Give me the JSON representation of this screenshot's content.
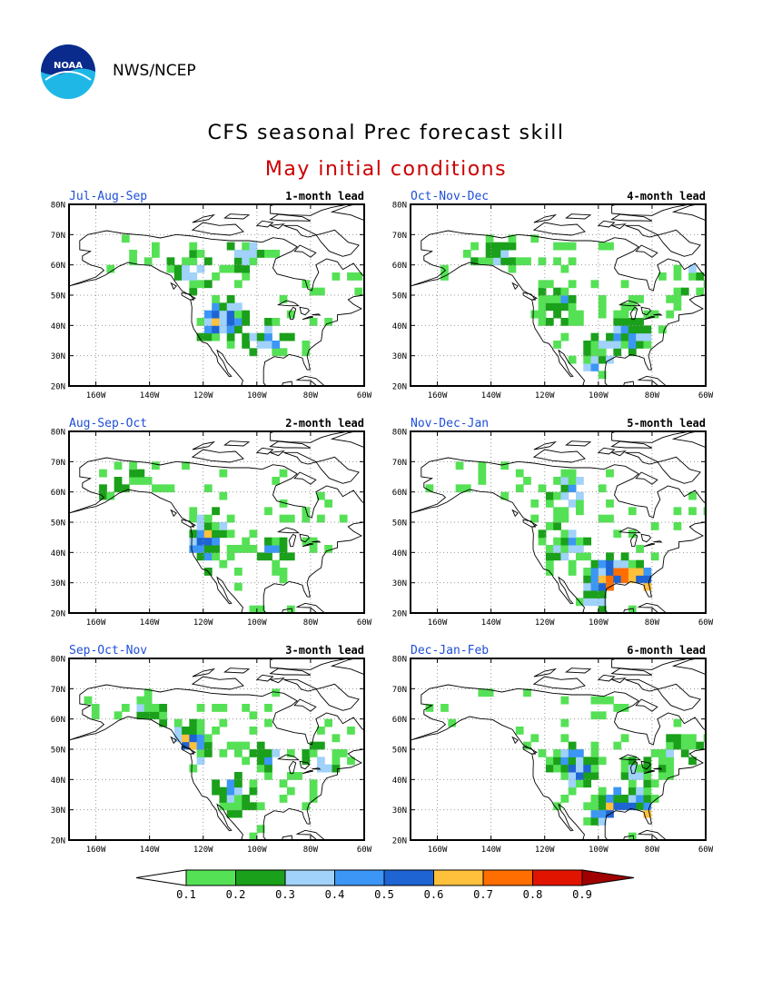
{
  "header": {
    "agency": "NWS/NCEP",
    "logo_text": "NOAA"
  },
  "title": "CFS seasonal Prec forecast skill",
  "subtitle": "May initial conditions",
  "colors": {
    "title": "#000000",
    "subtitle": "#cc0000",
    "season_label": "#1f4fd8",
    "coastline": "#000000",
    "grid": "#999999"
  },
  "map_axes": {
    "lat_ticks": [
      "80N",
      "70N",
      "60N",
      "50N",
      "40N",
      "30N",
      "20N"
    ],
    "lon_ticks": [
      "160W",
      "140W",
      "120W",
      "100W",
      "80W",
      "60W"
    ],
    "lat_range": [
      20,
      80
    ],
    "lon_range": [
      -170,
      -60
    ],
    "gridlines": "dotted"
  },
  "panels": [
    {
      "season": "Jul-Aug-Sep",
      "lead": "1-month lead"
    },
    {
      "season": "Oct-Nov-Dec",
      "lead": "4-month lead"
    },
    {
      "season": "Aug-Sep-Oct",
      "lead": "2-month lead"
    },
    {
      "season": "Nov-Dec-Jan",
      "lead": "5-month lead"
    },
    {
      "season": "Sep-Oct-Nov",
      "lead": "3-month lead"
    },
    {
      "season": "Dec-Jan-Feb",
      "lead": "6-month lead"
    }
  ],
  "legend": {
    "labels": [
      "0.1",
      "0.2",
      "0.3",
      "0.4",
      "0.5",
      "0.6",
      "0.7",
      "0.8",
      "0.9"
    ],
    "colors": [
      "#ffffff",
      "#55e155",
      "#1aa01a",
      "#a0d2fa",
      "#3c96f5",
      "#1e64d2",
      "#ffc03c",
      "#ff6e00",
      "#e11400",
      "#a00000"
    ]
  }
}
